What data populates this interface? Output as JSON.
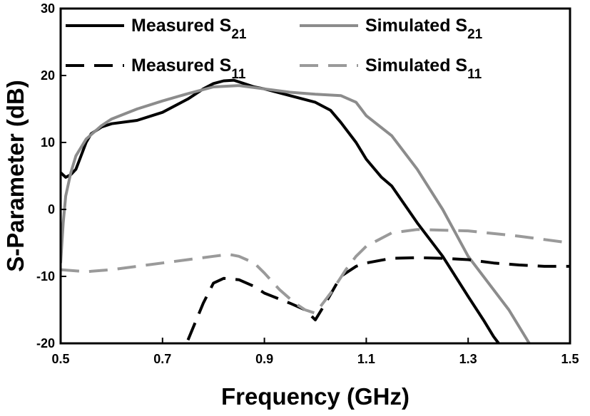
{
  "chart_data": {
    "type": "line",
    "title": "",
    "xlabel": "Frequency (GHz)",
    "ylabel": "S-Parameter (dB)",
    "xlim": [
      0.5,
      1.5
    ],
    "ylim": [
      -20,
      30
    ],
    "xticks": [
      "0.5",
      "0.7",
      "0.9",
      "1.1",
      "1.3",
      "1.5"
    ],
    "yticks": [
      "-20",
      "-10",
      "0",
      "10",
      "20",
      "30"
    ],
    "grid": false,
    "legend_position": "top",
    "series": [
      {
        "name": "Measured S21",
        "legend_main": "Measured S",
        "legend_sub": "21",
        "color": "#000000",
        "dash": "solid",
        "points": [
          [
            0.5,
            5.5
          ],
          [
            0.51,
            4.8
          ],
          [
            0.52,
            5.2
          ],
          [
            0.53,
            6.0
          ],
          [
            0.54,
            8.0
          ],
          [
            0.55,
            10.0
          ],
          [
            0.56,
            11.3
          ],
          [
            0.58,
            12.3
          ],
          [
            0.6,
            12.8
          ],
          [
            0.65,
            13.3
          ],
          [
            0.7,
            14.5
          ],
          [
            0.75,
            16.5
          ],
          [
            0.78,
            18.0
          ],
          [
            0.8,
            18.8
          ],
          [
            0.82,
            19.2
          ],
          [
            0.84,
            19.3
          ],
          [
            0.86,
            18.8
          ],
          [
            0.88,
            18.3
          ],
          [
            0.9,
            18.0
          ],
          [
            0.95,
            17.0
          ],
          [
            1.0,
            16.0
          ],
          [
            1.03,
            14.8
          ],
          [
            1.05,
            13.0
          ],
          [
            1.08,
            10.0
          ],
          [
            1.1,
            7.5
          ],
          [
            1.13,
            4.8
          ],
          [
            1.15,
            3.5
          ],
          [
            1.2,
            -2.0
          ],
          [
            1.25,
            -7.0
          ],
          [
            1.3,
            -13.0
          ],
          [
            1.33,
            -16.5
          ],
          [
            1.35,
            -19.0
          ],
          [
            1.36,
            -20.0
          ]
        ]
      },
      {
        "name": "Simulated S21",
        "legend_main": "Simulated S",
        "legend_sub": "21",
        "color": "#8c8c8c",
        "dash": "solid",
        "points": [
          [
            0.5,
            -8.0
          ],
          [
            0.505,
            -2.0
          ],
          [
            0.51,
            2.0
          ],
          [
            0.52,
            5.5
          ],
          [
            0.53,
            8.0
          ],
          [
            0.55,
            10.5
          ],
          [
            0.58,
            12.5
          ],
          [
            0.6,
            13.5
          ],
          [
            0.65,
            15.0
          ],
          [
            0.7,
            16.2
          ],
          [
            0.75,
            17.3
          ],
          [
            0.8,
            18.3
          ],
          [
            0.85,
            18.5
          ],
          [
            0.9,
            18.0
          ],
          [
            0.95,
            17.5
          ],
          [
            1.0,
            17.2
          ],
          [
            1.05,
            17.0
          ],
          [
            1.08,
            16.0
          ],
          [
            1.1,
            14.0
          ],
          [
            1.15,
            11.0
          ],
          [
            1.2,
            6.0
          ],
          [
            1.25,
            0.0
          ],
          [
            1.3,
            -7.0
          ],
          [
            1.35,
            -12.0
          ],
          [
            1.38,
            -15.0
          ],
          [
            1.4,
            -17.5
          ],
          [
            1.42,
            -20.0
          ]
        ]
      },
      {
        "name": "Measured S11",
        "legend_main": "Measured S",
        "legend_sub": "11",
        "color": "#000000",
        "dash": "dashed",
        "points": [
          [
            0.75,
            -19.5
          ],
          [
            0.78,
            -14.0
          ],
          [
            0.8,
            -11.0
          ],
          [
            0.82,
            -10.3
          ],
          [
            0.85,
            -10.5
          ],
          [
            0.88,
            -11.5
          ],
          [
            0.9,
            -12.5
          ],
          [
            0.95,
            -14.0
          ],
          [
            0.98,
            -15.0
          ],
          [
            1.0,
            -16.5
          ],
          [
            1.02,
            -14.0
          ],
          [
            1.05,
            -10.0
          ],
          [
            1.08,
            -8.5
          ],
          [
            1.1,
            -8.0
          ],
          [
            1.15,
            -7.3
          ],
          [
            1.2,
            -7.2
          ],
          [
            1.25,
            -7.3
          ],
          [
            1.3,
            -7.5
          ],
          [
            1.35,
            -8.0
          ],
          [
            1.4,
            -8.3
          ],
          [
            1.45,
            -8.5
          ],
          [
            1.5,
            -8.5
          ]
        ]
      },
      {
        "name": "Simulated S11",
        "legend_main": "Simulated S",
        "legend_sub": "11",
        "color": "#9a9a9a",
        "dash": "dashed",
        "points": [
          [
            0.5,
            -9.0
          ],
          [
            0.55,
            -9.3
          ],
          [
            0.6,
            -9.0
          ],
          [
            0.65,
            -8.5
          ],
          [
            0.7,
            -8.0
          ],
          [
            0.75,
            -7.5
          ],
          [
            0.8,
            -7.0
          ],
          [
            0.83,
            -6.7
          ],
          [
            0.85,
            -7.0
          ],
          [
            0.88,
            -8.0
          ],
          [
            0.9,
            -9.5
          ],
          [
            0.93,
            -12.0
          ],
          [
            0.96,
            -14.0
          ],
          [
            0.98,
            -15.0
          ],
          [
            1.0,
            -15.5
          ],
          [
            1.03,
            -12.5
          ],
          [
            1.06,
            -9.0
          ],
          [
            1.08,
            -7.0
          ],
          [
            1.1,
            -5.5
          ],
          [
            1.15,
            -3.5
          ],
          [
            1.2,
            -3.0
          ],
          [
            1.3,
            -3.2
          ],
          [
            1.4,
            -4.0
          ],
          [
            1.5,
            -5.0
          ]
        ]
      }
    ]
  }
}
